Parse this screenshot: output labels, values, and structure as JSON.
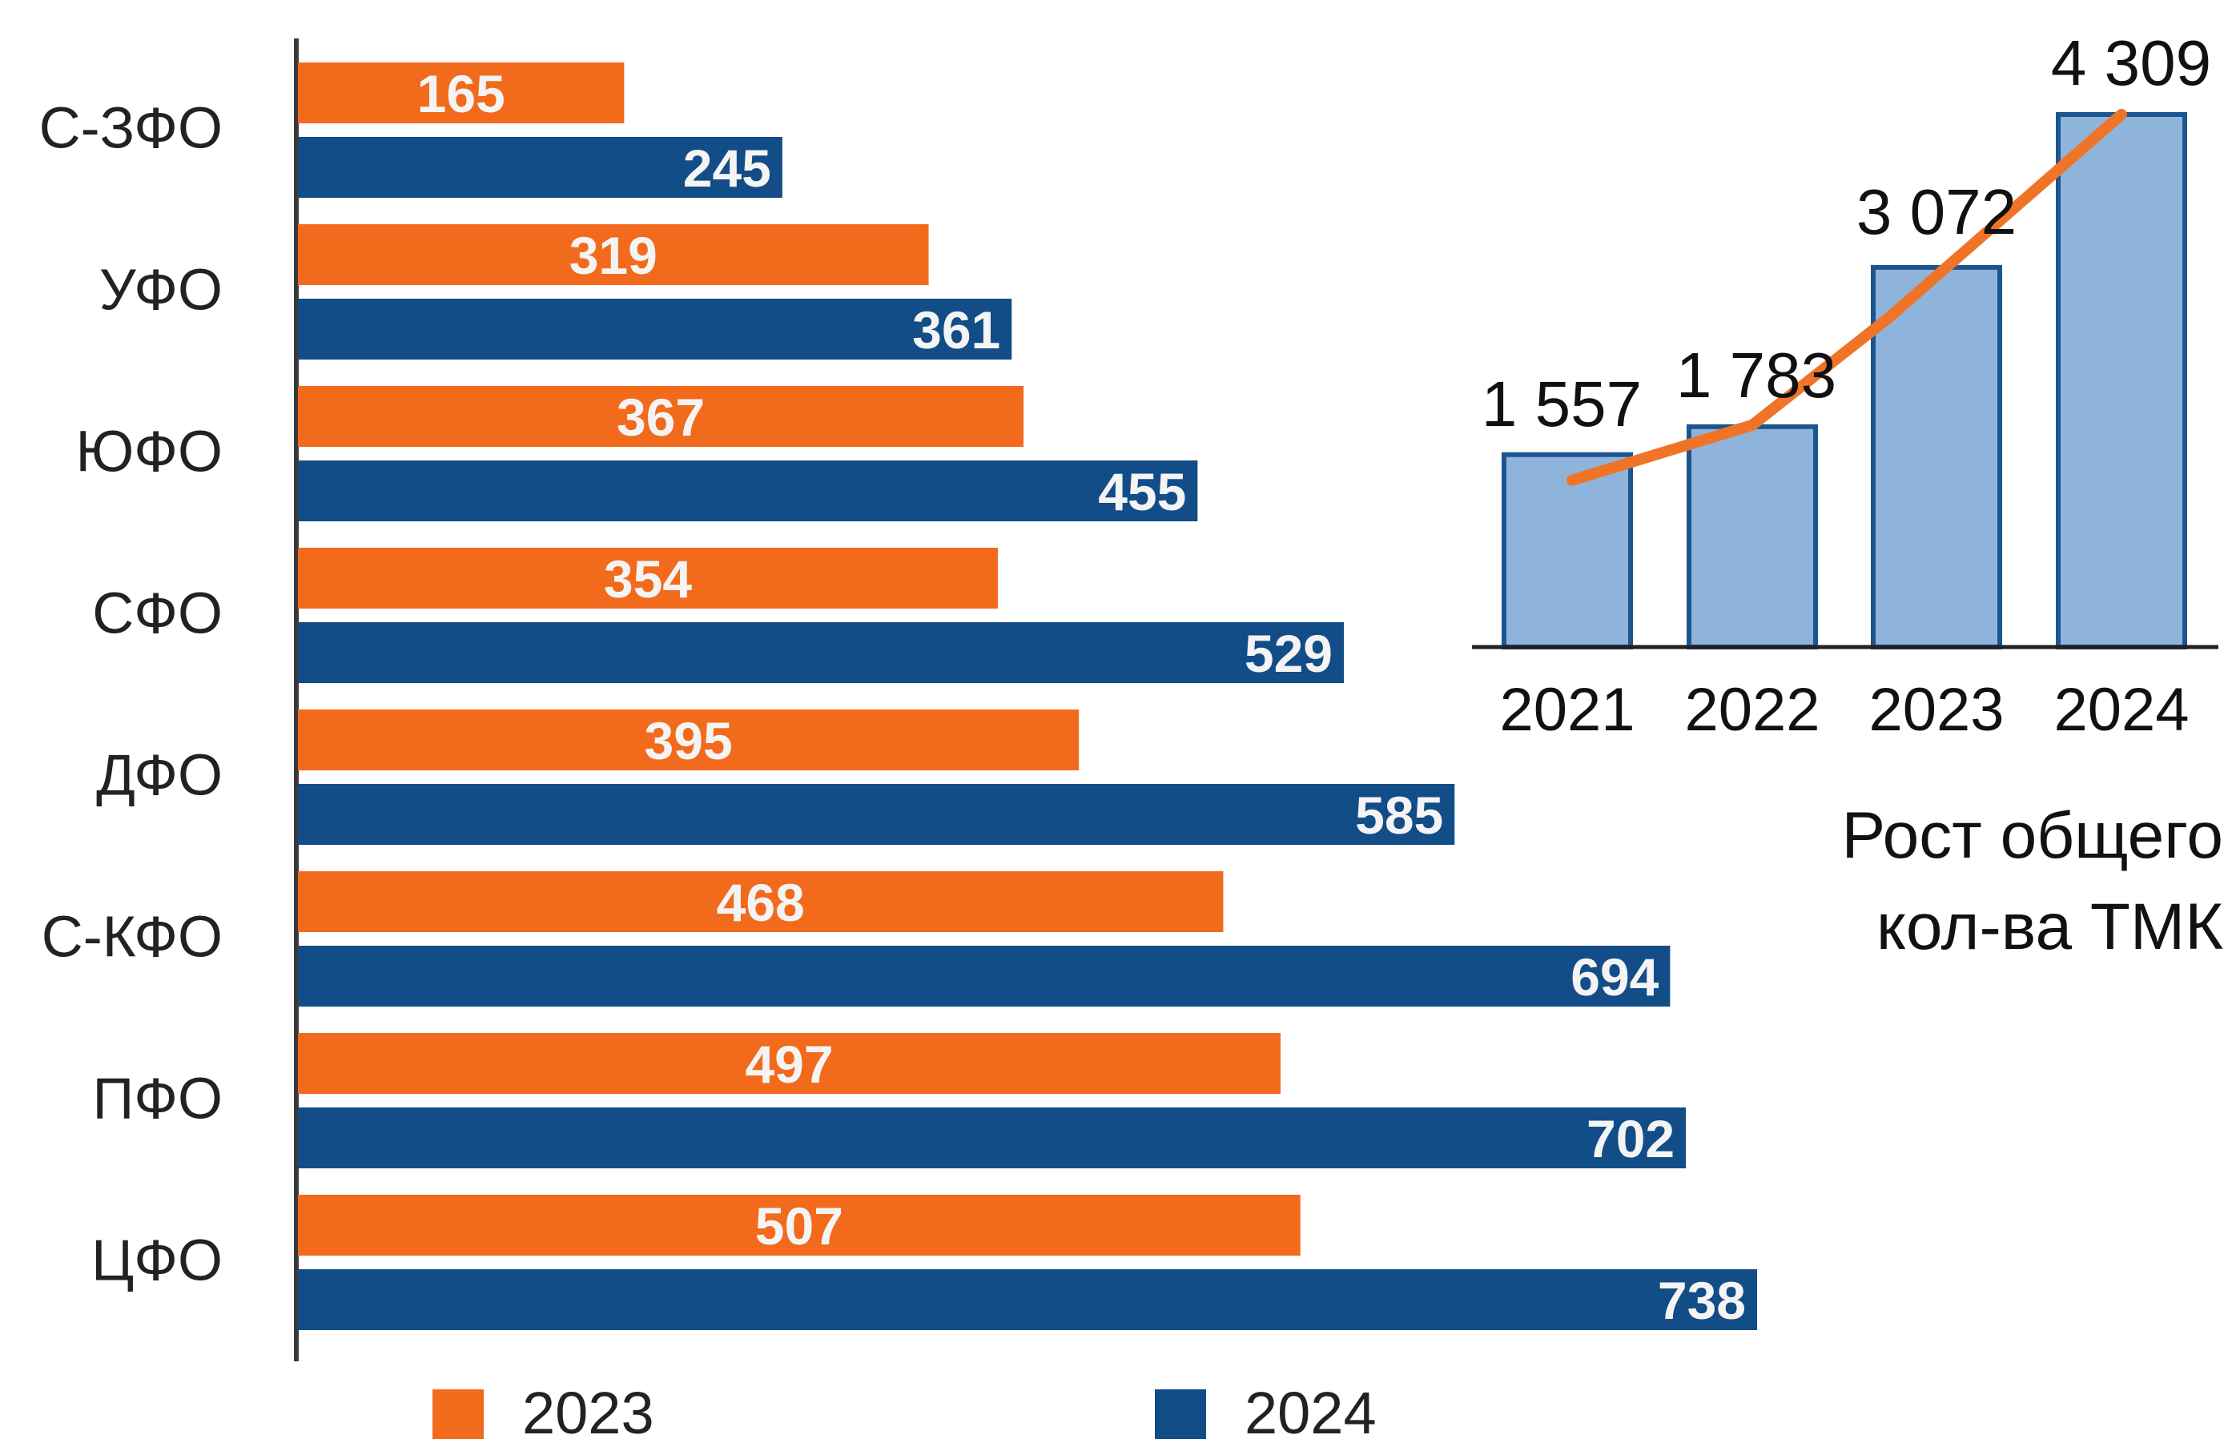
{
  "chart_data": [
    {
      "type": "bar",
      "orientation": "horizontal",
      "categories": [
        "С-ЗФО",
        "УФО",
        "ЮФО",
        "СФО",
        "ДФО",
        "С-КФО",
        "ПФО",
        "ЦФО"
      ],
      "series": [
        {
          "name": "2023",
          "color": "#f26b1d",
          "values": [
            165,
            319,
            367,
            354,
            395,
            468,
            497,
            507
          ]
        },
        {
          "name": "2024",
          "color": "#124d87",
          "values": [
            245,
            361,
            455,
            529,
            585,
            694,
            702,
            738
          ]
        }
      ],
      "xlim": [
        0,
        738
      ],
      "grid": false,
      "legend_position": "bottom",
      "data_labels": true
    },
    {
      "type": "bar",
      "overlay": "line",
      "categories": [
        "2021",
        "2022",
        "2023",
        "2024"
      ],
      "values": [
        1557,
        1783,
        3072,
        4309
      ],
      "value_labels": [
        "1 557",
        "1 783",
        "3 072",
        "4 309"
      ],
      "bar_color": "#8fb4dc",
      "bar_edge_color": "#1c558f",
      "line_color": "#f07427",
      "ylim": [
        0,
        4309
      ],
      "caption_lines": [
        "Рост общего",
        "кол-ва ТМК"
      ]
    }
  ]
}
